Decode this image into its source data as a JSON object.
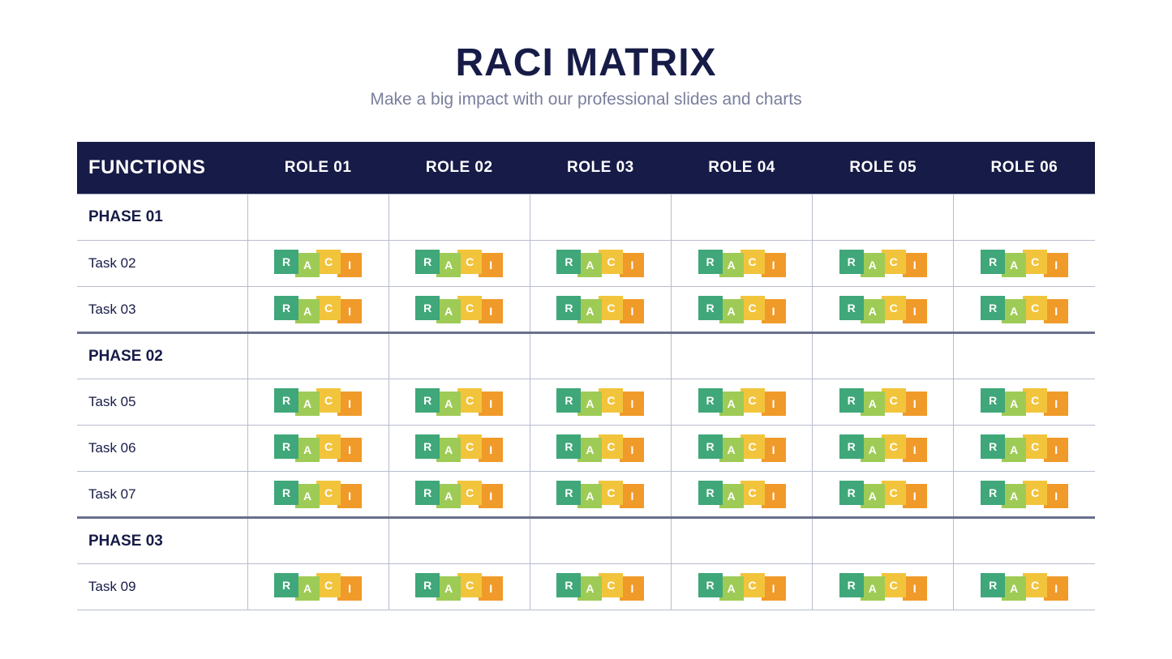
{
  "title": "RACI MATRIX",
  "subtitle": "Make a big impact with our professional slides and charts",
  "header": {
    "functions_label": "FUNCTIONS",
    "roles": [
      "ROLE 01",
      "ROLE 02",
      "ROLE 03",
      "ROLE 04",
      "ROLE 05",
      "ROLE 06"
    ]
  },
  "raci_badge": {
    "letters": {
      "r": "R",
      "a": "A",
      "c": "C",
      "i": "I"
    },
    "colors": {
      "r": "#3fa779",
      "a": "#9ecb55",
      "c": "#f2c43c",
      "i": "#f09a2a"
    },
    "text_color": "#ffffff"
  },
  "colors": {
    "title": "#171b47",
    "subtitle": "#7a7f9c",
    "header_bg": "#171b47",
    "header_fg": "#ffffff",
    "cell_border": "#b8bccf",
    "separator": "#6a6f8c",
    "background": "#ffffff"
  },
  "rows": [
    {
      "type": "phase",
      "label": "PHASE 01",
      "separator": false
    },
    {
      "type": "task",
      "label": "Task 02"
    },
    {
      "type": "task",
      "label": "Task 03"
    },
    {
      "type": "phase",
      "label": "PHASE 02",
      "separator": true
    },
    {
      "type": "task",
      "label": "Task 05"
    },
    {
      "type": "task",
      "label": "Task 06"
    },
    {
      "type": "task",
      "label": "Task 07"
    },
    {
      "type": "phase",
      "label": "PHASE 03",
      "separator": true
    },
    {
      "type": "task",
      "label": "Task 09"
    }
  ]
}
